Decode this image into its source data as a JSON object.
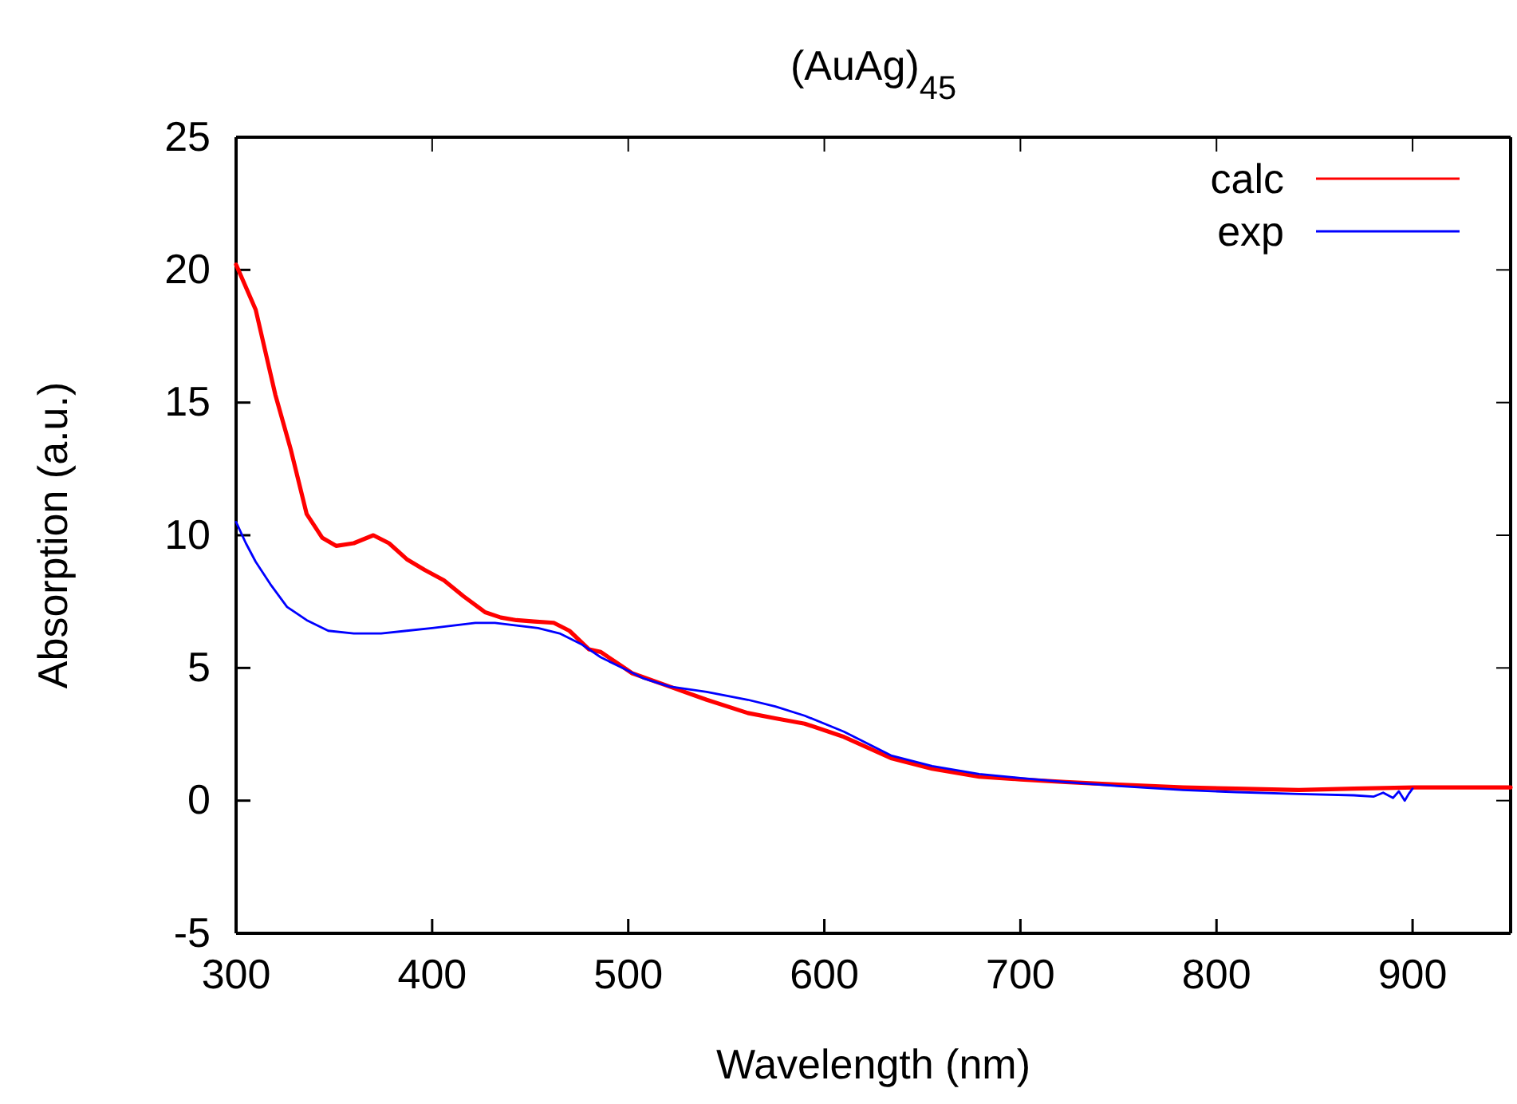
{
  "chart_data": {
    "type": "line",
    "title": "(AuAg)$_{45}$",
    "xlabel": "Wavelength (nm)",
    "ylabel": "Absorption (a.u.)",
    "xlim": [
      300,
      950
    ],
    "xticks": [
      300,
      400,
      500,
      600,
      700,
      800,
      900
    ],
    "ylim": [
      -5,
      25
    ],
    "yticks": [
      -5,
      0,
      5,
      10,
      15,
      20,
      25
    ],
    "grid": false,
    "legend": "top right",
    "line_style": "solid",
    "marker": "none",
    "series": [
      {
        "name": "calc",
        "color": "#ff0000",
        "x": [
          300,
          310,
          320,
          328,
          336,
          344,
          351,
          360,
          370,
          378,
          387,
          396,
          406,
          416,
          427,
          435,
          443,
          452,
          462,
          470,
          480,
          486,
          494,
          502,
          521,
          540,
          561,
          575,
          590,
          610,
          634,
          655,
          679,
          700,
          723,
          750,
          783,
          810,
          842,
          870,
          901,
          930,
          950
        ],
        "values": [
          20.2,
          18.5,
          15.3,
          13.2,
          10.8,
          9.9,
          9.6,
          9.7,
          10.0,
          9.7,
          9.1,
          8.7,
          8.3,
          7.7,
          7.1,
          6.9,
          6.8,
          6.75,
          6.7,
          6.4,
          5.7,
          5.6,
          5.2,
          4.8,
          4.3,
          3.8,
          3.3,
          3.1,
          2.9,
          2.4,
          1.6,
          1.2,
          0.9,
          0.8,
          0.7,
          0.6,
          0.5,
          0.45,
          0.4,
          0.45,
          0.5,
          0.5,
          0.5
        ]
      },
      {
        "name": "exp",
        "color": "#0000ff",
        "x": [
          300,
          305,
          310,
          318,
          326,
          336,
          347,
          360,
          374,
          387,
          400,
          411,
          422,
          432,
          443,
          454,
          465,
          476,
          486,
          497,
          508,
          521,
          540,
          561,
          575,
          590,
          610,
          634,
          655,
          679,
          700,
          723,
          750,
          783,
          810,
          842,
          870,
          880,
          885,
          890,
          893,
          896,
          898,
          900
        ],
        "values": [
          10.5,
          9.7,
          9.0,
          8.1,
          7.3,
          6.8,
          6.4,
          6.3,
          6.3,
          6.4,
          6.5,
          6.6,
          6.7,
          6.7,
          6.6,
          6.5,
          6.3,
          5.9,
          5.4,
          5.0,
          4.6,
          4.3,
          4.1,
          3.8,
          3.55,
          3.2,
          2.6,
          1.7,
          1.3,
          1.0,
          0.85,
          0.7,
          0.55,
          0.4,
          0.32,
          0.25,
          0.2,
          0.15,
          0.3,
          0.1,
          0.35,
          0.0,
          0.25,
          0.45
        ]
      }
    ]
  }
}
